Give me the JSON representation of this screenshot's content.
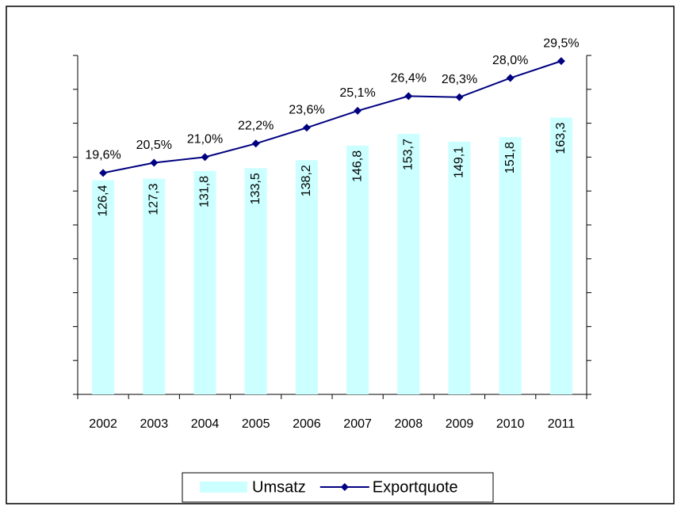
{
  "chart_data": {
    "type": "bar_line",
    "categories": [
      "2002",
      "2003",
      "2004",
      "2005",
      "2006",
      "2007",
      "2008",
      "2009",
      "2010",
      "2011"
    ],
    "series": [
      {
        "name": "Umsatz",
        "type": "bar",
        "color": "#ccffff",
        "values": [
          126.4,
          127.3,
          131.8,
          133.5,
          138.2,
          146.8,
          153.7,
          149.1,
          151.8,
          163.3
        ],
        "value_labels": [
          "126,4",
          "127,3",
          "131,8",
          "133,5",
          "138,2",
          "146,8",
          "153,7",
          "149,1",
          "151,8",
          "163,3"
        ]
      },
      {
        "name": "Exportquote",
        "type": "line",
        "axis": "y2",
        "color": "#000080",
        "values": [
          19.6,
          20.5,
          21.0,
          22.2,
          23.6,
          25.1,
          26.4,
          26.3,
          28.0,
          29.5
        ],
        "value_labels": [
          "19,6%",
          "20,5%",
          "21,0%",
          "22,2%",
          "23,6%",
          "25,1%",
          "26,4%",
          "26,3%",
          "28,0%",
          "29,5%"
        ]
      }
    ],
    "ylim": [
      0,
      200
    ],
    "yticks": [
      0,
      20,
      40,
      60,
      80,
      100,
      120,
      140,
      160,
      180,
      200
    ],
    "y2lim": [
      0,
      30
    ],
    "y2ticks": [
      0,
      3,
      6,
      9,
      12,
      15,
      18,
      21,
      24,
      27,
      30
    ],
    "legend": "bottom"
  }
}
